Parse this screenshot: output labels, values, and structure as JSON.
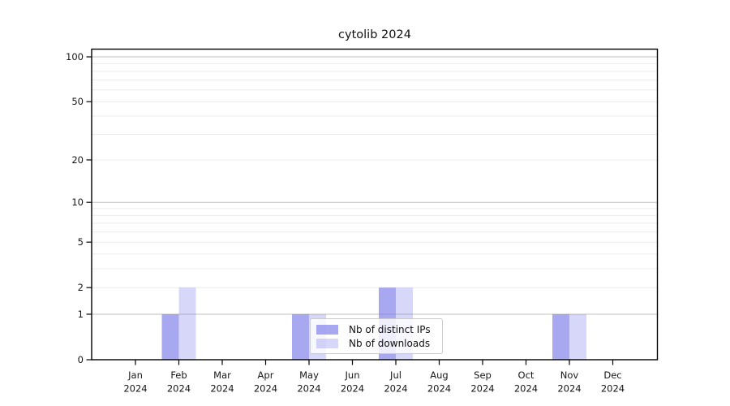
{
  "chart_data": {
    "type": "bar",
    "title": "cytolib 2024",
    "x_months": [
      "Jan",
      "Feb",
      "Mar",
      "Apr",
      "May",
      "Jun",
      "Jul",
      "Aug",
      "Sep",
      "Oct",
      "Nov",
      "Dec"
    ],
    "x_year": "2024",
    "series": [
      {
        "name": "Nb of distinct IPs",
        "color": "#7b7bea",
        "opacity": 0.66,
        "values": [
          0,
          1,
          0,
          0,
          1,
          0,
          2,
          0,
          0,
          0,
          1,
          0
        ]
      },
      {
        "name": "Nb of downloads",
        "color": "#7b7bea",
        "opacity": 0.3,
        "values": [
          0,
          2,
          0,
          0,
          1,
          0,
          2,
          0,
          0,
          0,
          1,
          0
        ]
      }
    ],
    "y_axis": {
      "scale": "log10(1+x)",
      "ylim": [
        0,
        114
      ],
      "ticks": [
        {
          "v": 100,
          "label": "100"
        },
        {
          "v": 50,
          "label": "50"
        },
        {
          "v": 20,
          "label": "20"
        },
        {
          "v": 10,
          "label": "10"
        },
        {
          "v": 5,
          "label": "5"
        },
        {
          "v": 2,
          "label": "2"
        },
        {
          "v": 1,
          "label": "1"
        },
        {
          "v": 0,
          "label": "0"
        }
      ],
      "major_gridlines": [
        1,
        10,
        100
      ],
      "minor_gridlines": [
        2,
        3,
        4,
        5,
        6,
        7,
        8,
        9,
        20,
        30,
        40,
        50,
        60,
        70,
        80,
        90
      ]
    },
    "grid_colors": {
      "major": "#bfbfbf",
      "minor": "#ececec"
    },
    "axis_color": "#000000",
    "legend_title_none": ""
  }
}
